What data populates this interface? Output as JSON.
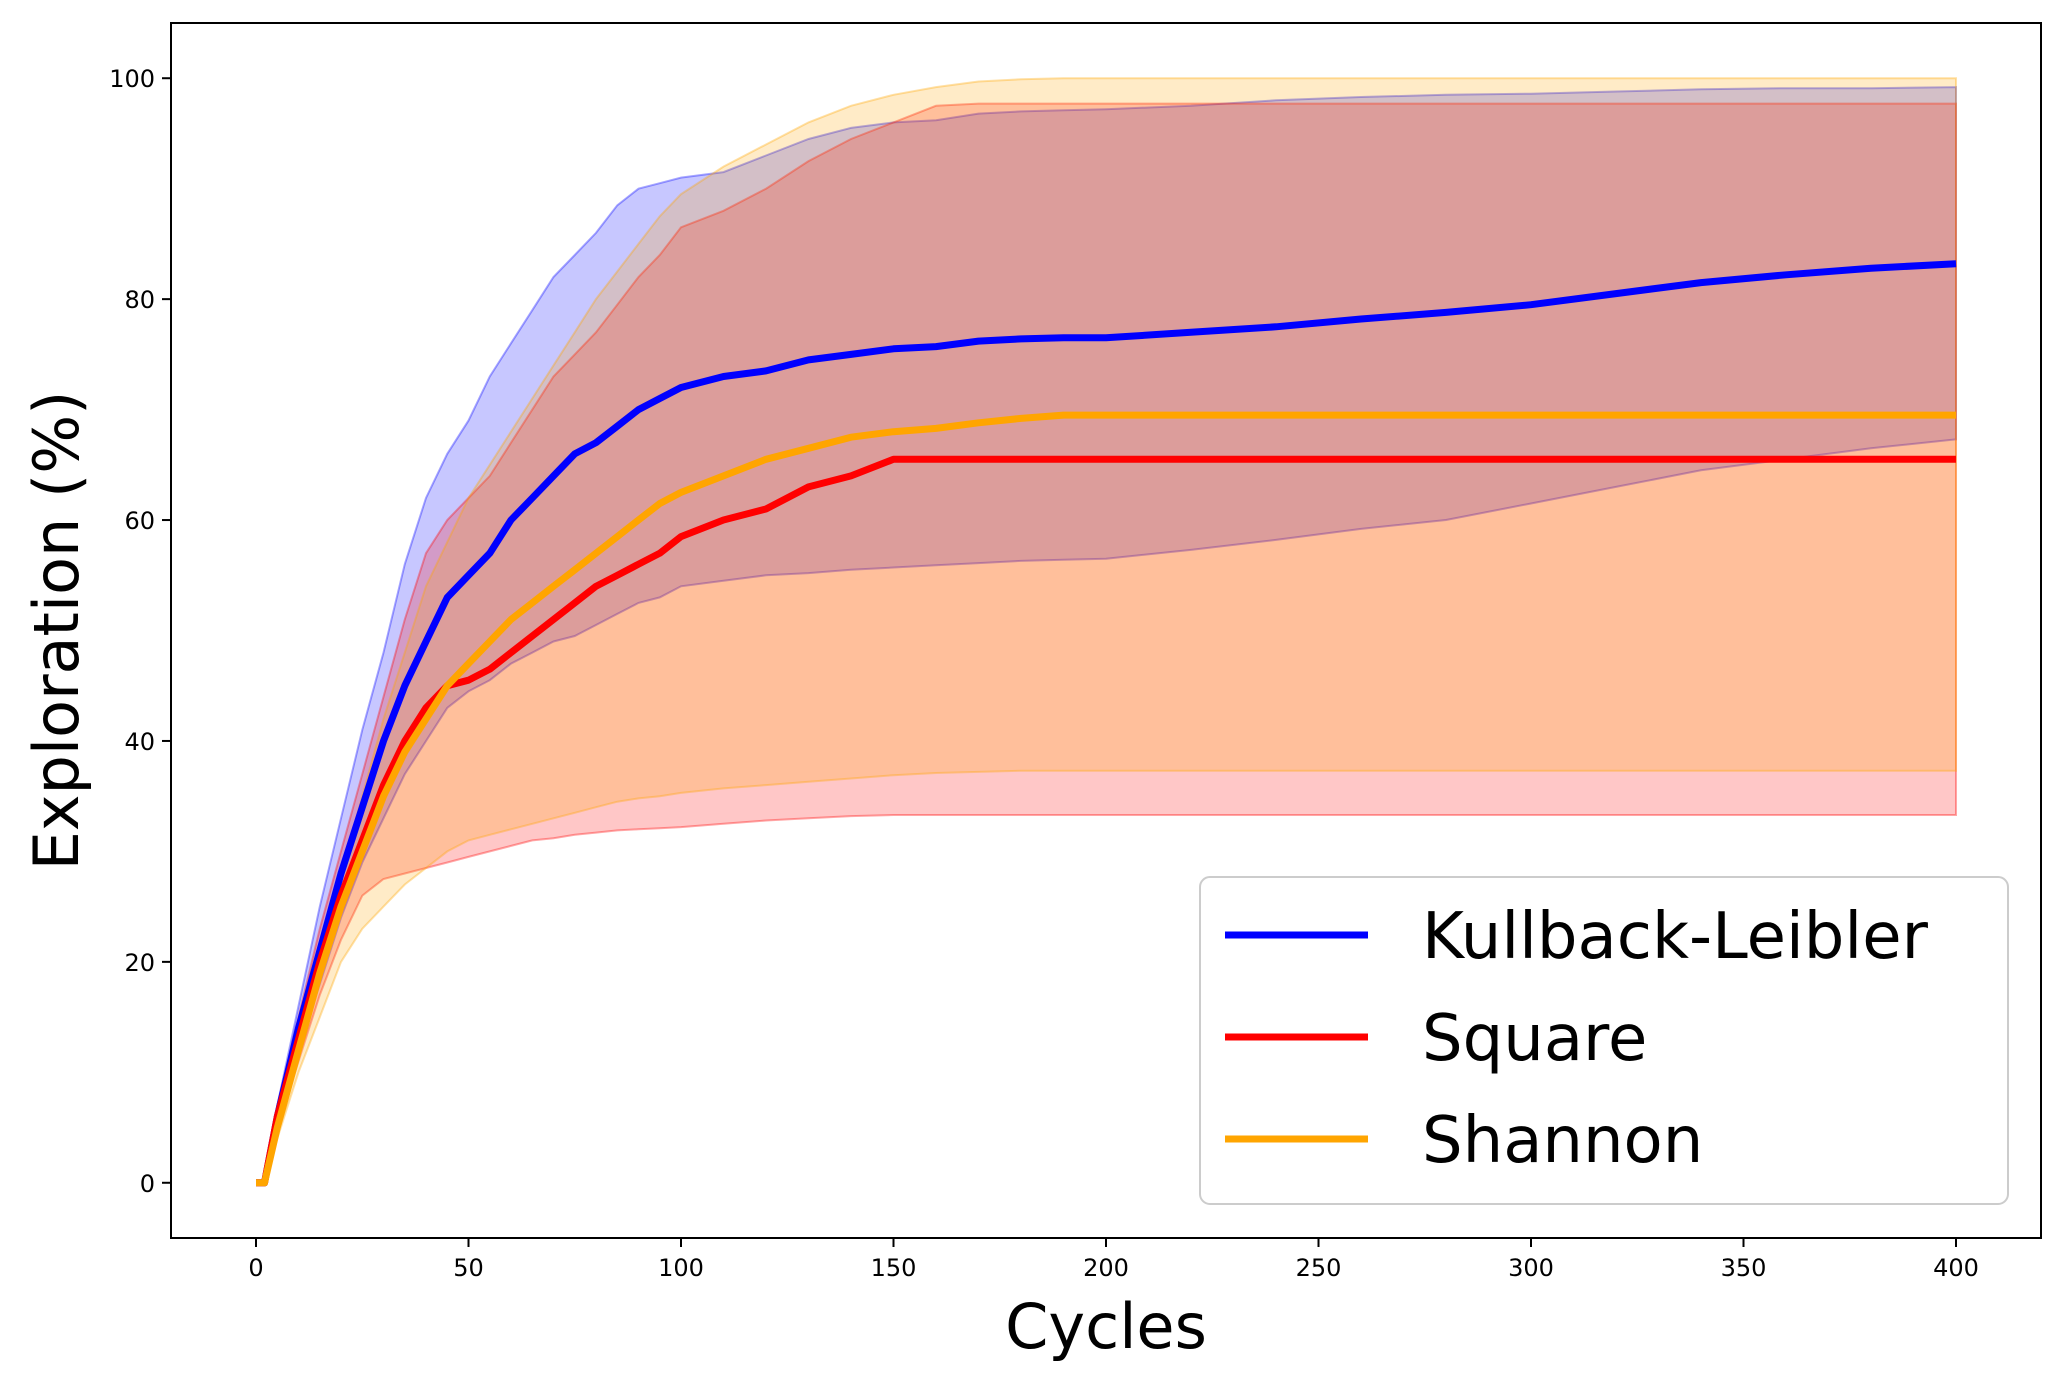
{
  "chart_data": {
    "type": "line",
    "title": "",
    "xlabel": "Cycles",
    "ylabel": "Exploration (%)",
    "xlim": [
      -20,
      420
    ],
    "ylim": [
      -5,
      105
    ],
    "xticks": [
      0,
      50,
      100,
      150,
      200,
      250,
      300,
      350,
      400
    ],
    "xtick_labels": [
      "0",
      "50",
      "100",
      "150",
      "200",
      "250",
      "300",
      "350",
      "400"
    ],
    "yticks": [
      0,
      20,
      40,
      60,
      80,
      100
    ],
    "ytick_labels": [
      "0",
      "20",
      "40",
      "60",
      "80",
      "100"
    ],
    "grid": false,
    "legend_position": "lower-right",
    "x": [
      0,
      2,
      5,
      10,
      15,
      20,
      25,
      30,
      35,
      40,
      45,
      50,
      55,
      60,
      65,
      70,
      75,
      80,
      85,
      90,
      95,
      100,
      110,
      120,
      130,
      140,
      150,
      160,
      170,
      180,
      190,
      200,
      220,
      240,
      260,
      280,
      300,
      320,
      340,
      360,
      380,
      400
    ],
    "series": [
      {
        "name": "Kullback-Leibler",
        "color": "#0000ff",
        "mean": [
          0,
          0,
          6,
          14,
          21,
          28,
          34,
          40,
          45,
          49,
          53,
          55,
          57,
          60,
          62,
          64,
          66,
          67,
          68.5,
          70,
          71,
          72,
          73,
          73.5,
          74.5,
          75,
          75.5,
          75.7,
          76.2,
          76.4,
          76.5,
          76.5,
          77,
          77.5,
          78.2,
          78.8,
          79.5,
          80.5,
          81.5,
          82.2,
          82.8,
          83.2
        ],
        "lower": [
          0,
          0,
          5,
          12,
          18,
          24,
          29,
          33,
          37,
          40,
          43,
          44.5,
          45.5,
          47,
          48,
          49,
          49.5,
          50.5,
          51.5,
          52.5,
          53,
          54,
          54.5,
          55,
          55.2,
          55.5,
          55.7,
          55.9,
          56.1,
          56.3,
          56.4,
          56.5,
          57.3,
          58.2,
          59.2,
          60,
          61.5,
          63,
          64.5,
          65.5,
          66.5,
          67.3
        ],
        "upper": [
          0,
          0,
          7,
          16,
          25,
          33,
          41,
          48,
          56,
          62,
          66,
          69,
          73,
          76,
          79,
          82,
          84,
          86,
          88.5,
          90,
          90.5,
          91,
          91.5,
          93,
          94.5,
          95.5,
          96,
          96.2,
          96.8,
          97,
          97.1,
          97.2,
          97.5,
          98,
          98.3,
          98.5,
          98.6,
          98.8,
          99,
          99.1,
          99.1,
          99.2
        ]
      },
      {
        "name": "Square",
        "color": "#ff0000",
        "mean": [
          0,
          0,
          6,
          13,
          20,
          26,
          31,
          36,
          40,
          43,
          45,
          45.5,
          46.5,
          48,
          49.5,
          51,
          52.5,
          54,
          55,
          56,
          57,
          58.5,
          60,
          61,
          63,
          64,
          65.5,
          65.5,
          65.5,
          65.5,
          65.5,
          65.5,
          65.5,
          65.5,
          65.5,
          65.5,
          65.5,
          65.5,
          65.5,
          65.5,
          65.5,
          65.5
        ],
        "lower": [
          0,
          0,
          5,
          11,
          17,
          22,
          26,
          27.5,
          28,
          28.5,
          29,
          29.5,
          30,
          30.5,
          31,
          31.2,
          31.5,
          31.7,
          31.9,
          32,
          32.1,
          32.2,
          32.5,
          32.8,
          33,
          33.2,
          33.3,
          33.3,
          33.3,
          33.3,
          33.3,
          33.3,
          33.3,
          33.3,
          33.3,
          33.3,
          33.3,
          33.3,
          33.3,
          33.3,
          33.3,
          33.3
        ],
        "upper": [
          0,
          0,
          7,
          15,
          23,
          30,
          37,
          44,
          51,
          57,
          60,
          62,
          64,
          67,
          70,
          73,
          75,
          77,
          79.5,
          82,
          84,
          86.5,
          88,
          90,
          92.5,
          94.5,
          96,
          97.5,
          97.7,
          97.7,
          97.7,
          97.7,
          97.7,
          97.7,
          97.7,
          97.7,
          97.7,
          97.7,
          97.7,
          97.7,
          97.7,
          97.7
        ]
      },
      {
        "name": "Shannon",
        "color": "#ffa500",
        "mean": [
          0,
          0,
          5,
          12,
          19,
          25,
          30,
          35,
          39,
          42,
          45,
          47,
          49,
          51,
          52.5,
          54,
          55.5,
          57,
          58.5,
          60,
          61.5,
          62.5,
          64,
          65.5,
          66.5,
          67.5,
          68,
          68.3,
          68.8,
          69.2,
          69.5,
          69.5,
          69.5,
          69.5,
          69.5,
          69.5,
          69.5,
          69.5,
          69.5,
          69.5,
          69.5,
          69.5
        ],
        "lower": [
          0,
          0,
          4,
          10,
          15,
          20,
          23,
          25,
          27,
          28.5,
          30,
          31,
          31.5,
          32,
          32.5,
          33,
          33.5,
          34,
          34.5,
          34.8,
          35,
          35.3,
          35.7,
          36,
          36.3,
          36.6,
          36.9,
          37.1,
          37.2,
          37.3,
          37.3,
          37.3,
          37.3,
          37.3,
          37.3,
          37.3,
          37.3,
          37.3,
          37.3,
          37.3,
          37.3,
          37.3
        ],
        "upper": [
          0,
          0,
          6,
          14,
          21,
          28,
          35,
          42,
          48,
          54,
          58,
          62,
          65,
          68,
          71,
          74,
          77,
          80,
          82.5,
          85,
          87.5,
          89.5,
          92,
          94,
          96,
          97.5,
          98.5,
          99.2,
          99.7,
          99.9,
          100,
          100,
          100,
          100,
          100,
          100,
          100,
          100,
          100,
          100,
          100,
          100
        ]
      }
    ]
  }
}
